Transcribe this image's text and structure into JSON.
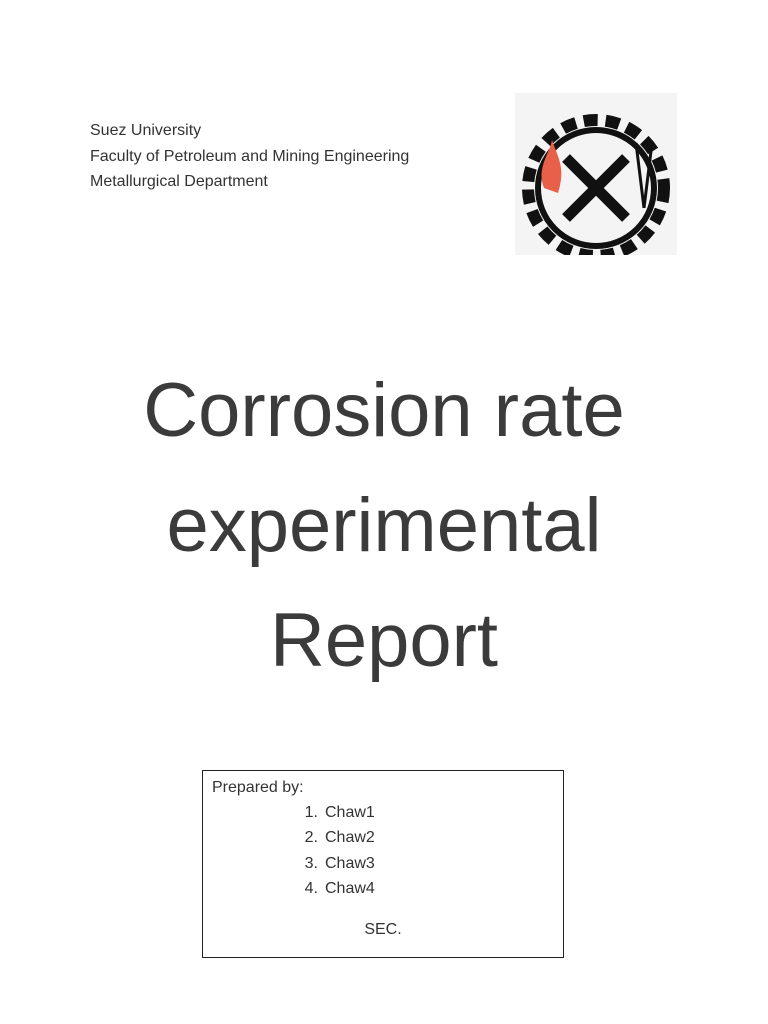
{
  "header": {
    "lines": [
      "Suez University",
      "Faculty of Petroleum and Mining Engineering",
      "Metallurgical Department"
    ]
  },
  "title": {
    "lines": [
      "Corrosion rate",
      "experimental",
      "Report"
    ]
  },
  "prepared": {
    "label": "Prepared by:",
    "members": [
      {
        "number": "1.",
        "name": "Chaw1"
      },
      {
        "number": "2.",
        "name": "Chaw2"
      },
      {
        "number": "3.",
        "name": "Chaw3"
      },
      {
        "number": "4.",
        "name": "Chaw4"
      }
    ],
    "section": "SEC."
  }
}
